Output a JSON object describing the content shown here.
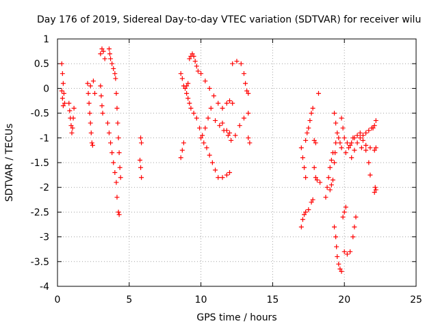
{
  "chart_data": {
    "type": "scatter",
    "title": "Day 176 of 2019, Sidereal Day-to-day VTEC variation (SDTVAR) for receiver wilu",
    "xlabel": "GPS time / hours",
    "ylabel": "SDTVAR / TECUs",
    "xlim": [
      0,
      25
    ],
    "ylim": [
      -4,
      1
    ],
    "xticks": [
      0,
      5,
      10,
      15,
      20,
      25
    ],
    "yticks": [
      -4,
      -3.5,
      -3,
      -2.5,
      -2,
      -1.5,
      -1,
      -0.5,
      0,
      0.5,
      1
    ],
    "xtick_labels": [
      "0",
      "5",
      "10",
      "15",
      "20",
      "25"
    ],
    "ytick_labels": [
      "-4",
      "-3.5",
      "-3",
      "-2.5",
      "-2",
      "-1.5",
      "-1",
      "-0.5",
      "0",
      "0.5",
      "1"
    ],
    "grid": true,
    "marker": "+",
    "color": "#ff0000",
    "series": [
      {
        "points": [
          [
            0.3,
            0.5
          ],
          [
            0.35,
            0.3
          ],
          [
            0.4,
            0.1
          ],
          [
            0.45,
            -0.1
          ],
          [
            0.5,
            -0.3
          ],
          [
            0.3,
            -0.05
          ],
          [
            0.35,
            -0.2
          ],
          [
            0.4,
            -0.35
          ],
          [
            0.8,
            -0.3
          ],
          [
            0.85,
            -0.45
          ],
          [
            0.9,
            -0.6
          ],
          [
            0.95,
            -0.75
          ],
          [
            1.0,
            -0.9
          ],
          [
            1.05,
            -0.8
          ],
          [
            1.1,
            -0.6
          ],
          [
            1.15,
            -0.4
          ],
          [
            2.1,
            0.1
          ],
          [
            2.15,
            -0.1
          ],
          [
            2.2,
            -0.3
          ],
          [
            2.25,
            -0.5
          ],
          [
            2.3,
            -0.7
          ],
          [
            2.35,
            -0.9
          ],
          [
            2.4,
            -1.1
          ],
          [
            2.45,
            -1.15
          ],
          [
            2.3,
            0.05
          ],
          [
            2.5,
            0.15
          ],
          [
            2.6,
            -0.1
          ],
          [
            3.0,
            0.7
          ],
          [
            3.1,
            0.8
          ],
          [
            3.2,
            0.75
          ],
          [
            3.3,
            0.6
          ],
          [
            3.0,
            0.05
          ],
          [
            3.05,
            -0.15
          ],
          [
            3.1,
            -0.35
          ],
          [
            3.15,
            -0.5
          ],
          [
            3.6,
            0.8
          ],
          [
            3.65,
            0.7
          ],
          [
            3.7,
            0.6
          ],
          [
            3.8,
            0.5
          ],
          [
            3.9,
            0.4
          ],
          [
            4.0,
            0.3
          ],
          [
            4.05,
            0.2
          ],
          [
            3.5,
            -0.7
          ],
          [
            3.6,
            -0.9
          ],
          [
            3.7,
            -1.1
          ],
          [
            3.8,
            -1.3
          ],
          [
            3.9,
            -1.5
          ],
          [
            4.0,
            -1.7
          ],
          [
            4.1,
            -1.9
          ],
          [
            4.15,
            -2.2
          ],
          [
            4.25,
            -2.5
          ],
          [
            4.3,
            -2.55
          ],
          [
            4.1,
            -0.1
          ],
          [
            4.15,
            -0.4
          ],
          [
            4.2,
            -0.7
          ],
          [
            4.25,
            -1.0
          ],
          [
            4.3,
            -1.3
          ],
          [
            4.35,
            -1.6
          ],
          [
            4.4,
            -1.8
          ],
          [
            5.8,
            -1.0
          ],
          [
            5.85,
            -1.1
          ],
          [
            5.75,
            -1.45
          ],
          [
            5.8,
            -1.6
          ],
          [
            5.85,
            -1.8
          ],
          [
            8.6,
            -1.4
          ],
          [
            8.7,
            -1.25
          ],
          [
            8.8,
            -1.1
          ],
          [
            8.6,
            0.3
          ],
          [
            8.7,
            0.2
          ],
          [
            8.8,
            0.05
          ],
          [
            8.9,
            0.0
          ],
          [
            9.0,
            0.05
          ],
          [
            9.1,
            0.1
          ],
          [
            9.2,
            0.6
          ],
          [
            9.3,
            0.65
          ],
          [
            9.4,
            0.7
          ],
          [
            9.5,
            0.65
          ],
          [
            9.6,
            0.55
          ],
          [
            9.7,
            0.45
          ],
          [
            9.8,
            0.35
          ],
          [
            9.0,
            -0.1
          ],
          [
            9.1,
            -0.2
          ],
          [
            9.2,
            -0.3
          ],
          [
            9.3,
            -0.4
          ],
          [
            9.5,
            -0.5
          ],
          [
            9.7,
            -0.6
          ],
          [
            9.9,
            -0.8
          ],
          [
            10.0,
            -1.0
          ],
          [
            10.1,
            -0.95
          ],
          [
            10.3,
            -0.8
          ],
          [
            10.5,
            -0.6
          ],
          [
            10.7,
            -0.4
          ],
          [
            10.2,
            -1.1
          ],
          [
            10.4,
            -1.2
          ],
          [
            10.6,
            -1.35
          ],
          [
            10.8,
            -1.5
          ],
          [
            11.0,
            -1.65
          ],
          [
            11.2,
            -1.8
          ],
          [
            11.5,
            -1.8
          ],
          [
            11.8,
            -1.75
          ],
          [
            12.0,
            -1.7
          ],
          [
            10.0,
            0.3
          ],
          [
            10.3,
            0.15
          ],
          [
            10.6,
            0.0
          ],
          [
            10.9,
            -0.15
          ],
          [
            11.2,
            -0.3
          ],
          [
            11.5,
            -0.4
          ],
          [
            11.8,
            -0.3
          ],
          [
            12.0,
            -0.25
          ],
          [
            12.2,
            -0.3
          ],
          [
            11.0,
            -0.65
          ],
          [
            11.3,
            -0.75
          ],
          [
            11.6,
            -0.85
          ],
          [
            11.9,
            -0.95
          ],
          [
            12.1,
            -1.05
          ],
          [
            12.4,
            -0.95
          ],
          [
            12.7,
            -0.75
          ],
          [
            13.0,
            -0.6
          ],
          [
            13.3,
            -0.5
          ],
          [
            11.5,
            -0.7
          ],
          [
            11.8,
            -0.85
          ],
          [
            12.0,
            -0.9
          ],
          [
            12.2,
            0.5
          ],
          [
            12.5,
            0.55
          ],
          [
            12.8,
            0.5
          ],
          [
            13.0,
            0.3
          ],
          [
            13.1,
            0.1
          ],
          [
            13.2,
            -0.05
          ],
          [
            13.3,
            -0.1
          ],
          [
            13.4,
            -1.1
          ],
          [
            13.3,
            -1.0
          ],
          [
            17.0,
            -1.2
          ],
          [
            17.1,
            -1.4
          ],
          [
            17.2,
            -1.6
          ],
          [
            17.3,
            -1.8
          ],
          [
            17.0,
            -2.8
          ],
          [
            17.1,
            -2.65
          ],
          [
            17.2,
            -2.55
          ],
          [
            17.3,
            -2.5
          ],
          [
            17.5,
            -2.45
          ],
          [
            17.7,
            -2.3
          ],
          [
            17.8,
            -2.25
          ],
          [
            17.3,
            -1.05
          ],
          [
            17.4,
            -0.9
          ],
          [
            17.5,
            -0.8
          ],
          [
            17.6,
            -0.65
          ],
          [
            17.7,
            -0.5
          ],
          [
            17.8,
            -0.4
          ],
          [
            17.9,
            -1.05
          ],
          [
            18.0,
            -1.1
          ],
          [
            18.2,
            -0.1
          ],
          [
            18.3,
            -1.9
          ],
          [
            17.9,
            -1.6
          ],
          [
            18.0,
            -1.8
          ],
          [
            18.1,
            -1.85
          ],
          [
            18.7,
            -2.2
          ],
          [
            18.8,
            -2.0
          ],
          [
            18.9,
            -1.8
          ],
          [
            19.0,
            -1.6
          ],
          [
            19.1,
            -1.45
          ],
          [
            19.2,
            -1.3
          ],
          [
            19.0,
            -2.05
          ],
          [
            19.1,
            -1.95
          ],
          [
            19.2,
            -1.85
          ],
          [
            19.3,
            -0.5
          ],
          [
            19.4,
            -0.7
          ],
          [
            19.5,
            -0.9
          ],
          [
            19.6,
            -1.0
          ],
          [
            19.7,
            -1.1
          ],
          [
            19.8,
            -1.2
          ],
          [
            19.3,
            -1.5
          ],
          [
            19.35,
            -1.3
          ],
          [
            19.4,
            -1.1
          ],
          [
            19.3,
            -2.8
          ],
          [
            19.4,
            -3.0
          ],
          [
            19.45,
            -3.2
          ],
          [
            19.5,
            -3.4
          ],
          [
            19.6,
            -3.55
          ],
          [
            19.7,
            -3.65
          ],
          [
            19.8,
            -3.7
          ],
          [
            19.9,
            -2.6
          ],
          [
            20.0,
            -2.5
          ],
          [
            20.1,
            -2.4
          ],
          [
            20.0,
            -3.3
          ],
          [
            20.2,
            -3.35
          ],
          [
            20.4,
            -3.3
          ],
          [
            20.6,
            -3.0
          ],
          [
            20.7,
            -2.8
          ],
          [
            20.8,
            -2.6
          ],
          [
            19.8,
            -0.6
          ],
          [
            19.9,
            -0.8
          ],
          [
            20.0,
            -1.0
          ],
          [
            20.2,
            -1.1
          ],
          [
            20.4,
            -1.15
          ],
          [
            20.6,
            -1.0
          ],
          [
            20.1,
            -1.3
          ],
          [
            20.3,
            -1.2
          ],
          [
            20.5,
            -1.1
          ],
          [
            20.7,
            -1.0
          ],
          [
            20.9,
            -0.95
          ],
          [
            21.1,
            -0.9
          ],
          [
            21.3,
            -1.05
          ],
          [
            21.5,
            -1.25
          ],
          [
            21.7,
            -1.5
          ],
          [
            21.8,
            -1.75
          ],
          [
            20.5,
            -1.4
          ],
          [
            20.7,
            -1.25
          ],
          [
            20.9,
            -1.1
          ],
          [
            21.1,
            -1.0
          ],
          [
            21.3,
            -0.95
          ],
          [
            21.5,
            -0.9
          ],
          [
            21.7,
            -0.85
          ],
          [
            21.9,
            -0.8
          ],
          [
            21.2,
            -1.2
          ],
          [
            21.5,
            -1.15
          ],
          [
            21.8,
            -1.2
          ],
          [
            22.1,
            -1.25
          ],
          [
            22.2,
            -1.2
          ],
          [
            22.0,
            -0.8
          ],
          [
            22.1,
            -0.75
          ],
          [
            22.2,
            -0.65
          ],
          [
            22.1,
            -2.1
          ],
          [
            22.15,
            -2.0
          ],
          [
            22.2,
            -2.05
          ]
        ]
      }
    ]
  }
}
